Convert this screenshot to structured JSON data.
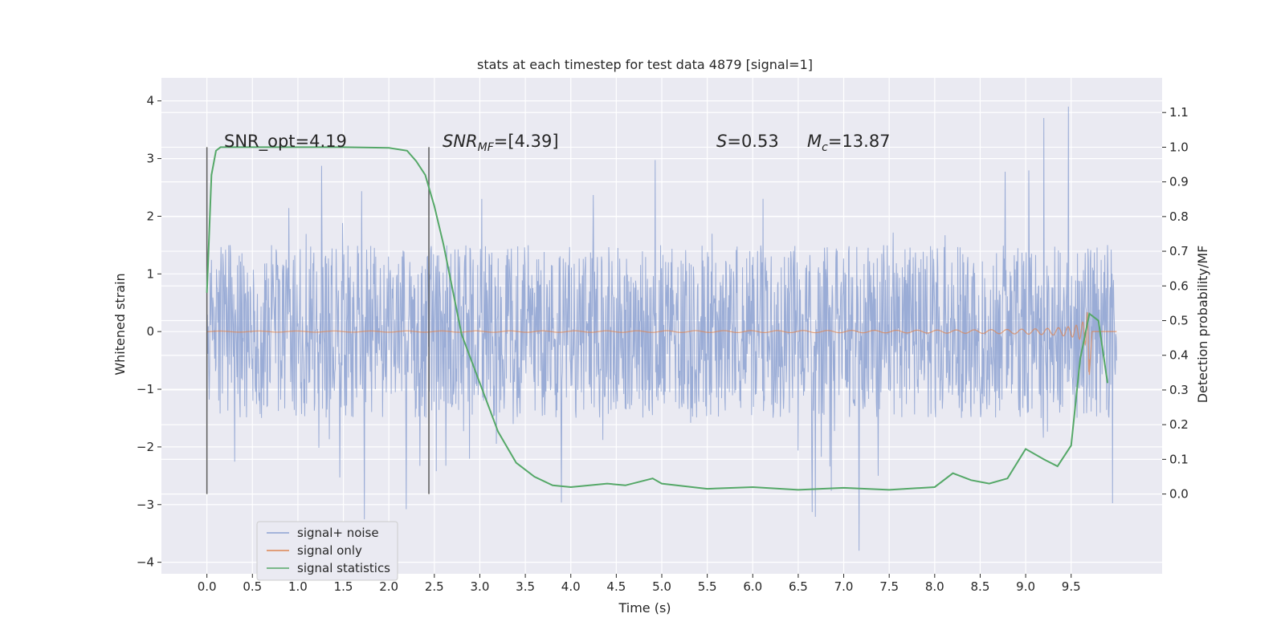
{
  "chart_data": {
    "type": "line",
    "title": "stats at each timestep for test data 4879 [signal=1]",
    "xlabel": "Time (s)",
    "ylabel": "Whitened strain",
    "y2label": "Detection probability/MF",
    "xlim": [
      -0.5,
      10.5
    ],
    "ylim": [
      -4.2,
      4.4
    ],
    "y2lim": [
      -0.23,
      1.2
    ],
    "x_ticks": [
      "0.0",
      "0.5",
      "1.0",
      "1.5",
      "2.0",
      "2.5",
      "3.0",
      "3.5",
      "4.0",
      "4.5",
      "5.0",
      "5.5",
      "6.0",
      "6.5",
      "7.0",
      "7.5",
      "8.0",
      "8.5",
      "9.0",
      "9.5"
    ],
    "y_ticks": [
      "4",
      "3",
      "2",
      "1",
      "0",
      "−1",
      "−2",
      "−3",
      "−4"
    ],
    "y2_ticks": [
      "1.1",
      "1.0",
      "0.9",
      "0.8",
      "0.7",
      "0.6",
      "0.5",
      "0.4",
      "0.3",
      "0.2",
      "0.1",
      "0.0"
    ],
    "grid": true,
    "legend_position": "lower-left",
    "colors": {
      "background": "#eaeaf2",
      "grid": "#ffffff",
      "noise": "#8ca1d1",
      "signal": "#dd8452",
      "stats": "#55a868",
      "vline": "#5a5a5a"
    },
    "series": [
      {
        "name": "signal+ noise",
        "x_range": [
          0.0,
          10.0
        ],
        "band_approx": [
          -1.5,
          1.5
        ],
        "spike_extremes": {
          "max": 3.9,
          "min": -3.8
        }
      },
      {
        "name": "signal only",
        "chirp": {
          "t_merge": 9.7,
          "peak_amplitude": 0.85,
          "min_amplitude": -0.75
        }
      },
      {
        "name": "signal statistics",
        "axis": "right",
        "x": [
          0.0,
          0.05,
          0.1,
          0.15,
          0.3,
          0.5,
          1.0,
          1.5,
          2.0,
          2.2,
          2.3,
          2.4,
          2.5,
          2.6,
          2.7,
          2.8,
          3.0,
          3.2,
          3.4,
          3.6,
          3.8,
          4.0,
          4.4,
          4.6,
          4.9,
          5.0,
          5.5,
          6.0,
          6.5,
          7.0,
          7.5,
          8.0,
          8.2,
          8.4,
          8.6,
          8.8,
          9.0,
          9.2,
          9.35,
          9.5,
          9.6,
          9.7,
          9.8,
          9.9
        ],
        "values": [
          0.58,
          0.92,
          0.99,
          1.0,
          1.0,
          1.0,
          1.0,
          1.0,
          0.998,
          0.99,
          0.96,
          0.92,
          0.83,
          0.72,
          0.59,
          0.46,
          0.32,
          0.18,
          0.09,
          0.05,
          0.025,
          0.02,
          0.03,
          0.025,
          0.045,
          0.03,
          0.015,
          0.02,
          0.012,
          0.018,
          0.012,
          0.02,
          0.06,
          0.04,
          0.03,
          0.045,
          0.13,
          0.1,
          0.08,
          0.14,
          0.39,
          0.52,
          0.5,
          0.32
        ]
      }
    ],
    "vlines": [
      0.0,
      2.44
    ],
    "annotations": [
      {
        "text": "SNR_opt=4.19",
        "x": 0.2
      },
      {
        "label": "SNR",
        "sub": "MF",
        "text": "=[4.39]",
        "x": 2.6
      },
      {
        "label": "S",
        "text": "=0.53",
        "x": 5.6
      },
      {
        "label": "M",
        "sub": "c",
        "text": "=13.87",
        "x": 6.6
      }
    ],
    "legend": [
      "signal+ noise",
      "signal only",
      "signal statistics"
    ]
  }
}
